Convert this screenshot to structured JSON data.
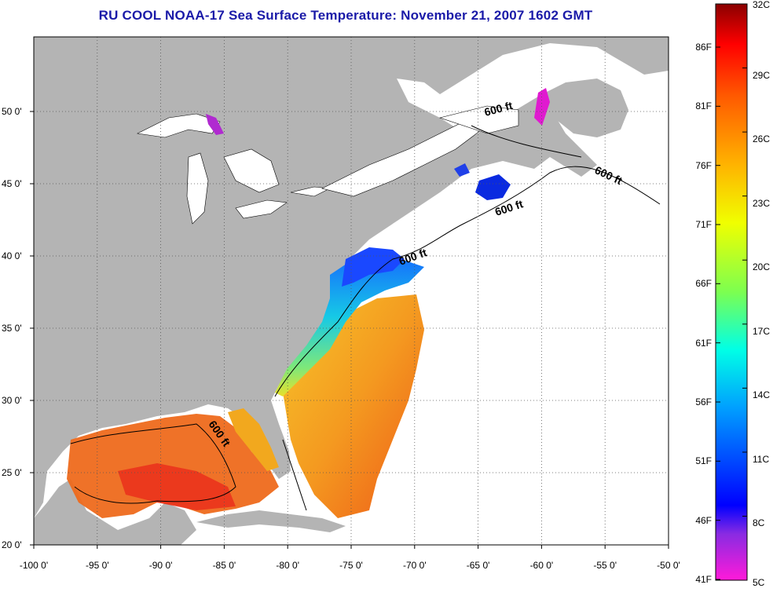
{
  "title": "RU COOL  NOAA-17  Sea Surface Temperature:  November 21, 2007 1602 GMT",
  "lon_ticks": [
    "-100 0'",
    "-95 0'",
    "-90 0'",
    "-85 0'",
    "-80 0'",
    "-75 0'",
    "-70 0'",
    "-65 0'",
    "-60 0'",
    "-55 0'",
    "-50 0'"
  ],
  "lat_ticks": [
    "50 0'",
    "45 0'",
    "40 0'",
    "35 0'",
    "30 0'",
    "25 0'",
    "20 0'"
  ],
  "contour_labels": [
    "600 ft",
    "600 ft",
    "600 ft",
    "600 ft",
    "600 ft"
  ],
  "colorbar": {
    "fahrenheit": [
      "86F",
      "81F",
      "76F",
      "71F",
      "66F",
      "61F",
      "56F",
      "51F",
      "46F",
      "41F"
    ],
    "celsius": [
      "32C",
      "29C",
      "26C",
      "23C",
      "20C",
      "17C",
      "14C",
      "11C",
      "8C",
      "5C"
    ]
  },
  "colors": {
    "land": "#b4b4b4",
    "no_data": "#ffffff",
    "title": "#1a1aa8",
    "cold": "#0a20e6",
    "warm": "#f26a18"
  }
}
